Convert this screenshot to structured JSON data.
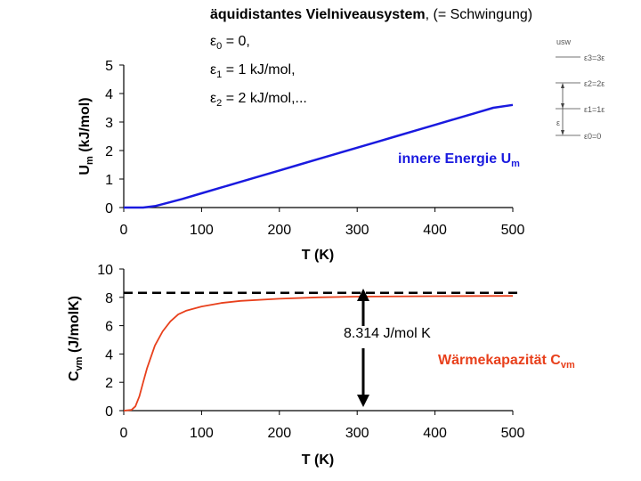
{
  "title_bold": "äquidistantes Vielniveausystem",
  "title_rest": ", (= Schwingung)",
  "equations": [
    {
      "symbol": "ε",
      "sub": "0",
      "rest": " = 0,"
    },
    {
      "symbol": "ε",
      "sub": "1",
      "rest": " = 1 kJ/mol,"
    },
    {
      "symbol": "ε",
      "sub": "2",
      "rest": " = 2 kJ/mol,..."
    }
  ],
  "energy_label": {
    "text": "innere Energie U",
    "sub": "m"
  },
  "heat_label": {
    "text": "Wärmekapazität C",
    "sub": "vm"
  },
  "r_value_text": "8.314 J/mol K",
  "inset": {
    "title": "usw",
    "levels": [
      "ε3=3ε",
      "ε2=2ε",
      "ε1=1ε",
      "ε0=0"
    ],
    "spacing_label": "ε"
  },
  "colors": {
    "energy": "#1a1adf",
    "heat": "#e8401c",
    "dashed": "#000000"
  },
  "chart_data": [
    {
      "type": "line",
      "title": "innere Energie Um",
      "xlabel": "T (K)",
      "ylabel_main": "U",
      "ylabel_sub": "m",
      "ylabel_rest": " (kJ/mol)",
      "xlim": [
        0,
        500
      ],
      "ylim": [
        0,
        5
      ],
      "xticks": [
        "0",
        "100",
        "200",
        "300",
        "400",
        "500"
      ],
      "yticks": [
        "0",
        "1",
        "2",
        "3",
        "4",
        "5"
      ],
      "series": [
        {
          "name": "Um",
          "x": [
            0,
            25,
            40,
            50,
            75,
            100,
            125,
            150,
            175,
            200,
            225,
            250,
            275,
            300,
            325,
            350,
            375,
            400,
            425,
            450,
            475,
            500
          ],
          "y": [
            0,
            0,
            0.05,
            0.12,
            0.3,
            0.5,
            0.7,
            0.9,
            1.1,
            1.3,
            1.5,
            1.7,
            1.9,
            2.1,
            2.3,
            2.5,
            2.7,
            2.9,
            3.1,
            3.3,
            3.5,
            3.6
          ]
        }
      ]
    },
    {
      "type": "line",
      "title": "Wärmekapazität Cvm",
      "xlabel": "T (K)",
      "ylabel_main": "C",
      "ylabel_sub": "vm",
      "ylabel_rest": " (J/molK)",
      "xlim": [
        0,
        500
      ],
      "ylim": [
        0,
        10
      ],
      "xticks": [
        "0",
        "100",
        "200",
        "300",
        "400",
        "500"
      ],
      "yticks": [
        "0",
        "2",
        "4",
        "6",
        "8",
        "10"
      ],
      "reference_line": {
        "y": 8.314,
        "style": "dashed"
      },
      "series": [
        {
          "name": "Cvm",
          "x": [
            0,
            10,
            15,
            20,
            25,
            30,
            40,
            50,
            60,
            70,
            80,
            100,
            125,
            150,
            200,
            250,
            300,
            400,
            500
          ],
          "y": [
            0,
            0.05,
            0.3,
            1.0,
            2.0,
            3.0,
            4.6,
            5.6,
            6.3,
            6.8,
            7.05,
            7.35,
            7.6,
            7.75,
            7.9,
            8.0,
            8.05,
            8.08,
            8.1
          ]
        }
      ]
    }
  ]
}
